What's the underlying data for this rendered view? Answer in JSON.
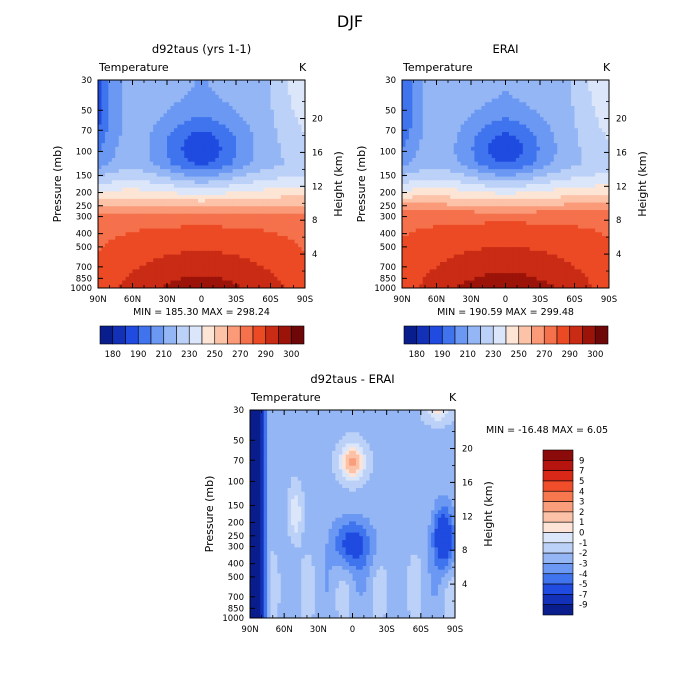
{
  "figure_title": "DJF",
  "chart_data": [
    {
      "type": "heatmap",
      "title": "d92taus (yrs 1-1)",
      "variable_label": "Temperature",
      "units_label": "K",
      "xlabel": "",
      "ylabel": "Pressure (mb)",
      "y2label": "Height (km)",
      "x_ticks": [
        "90N",
        "60N",
        "30N",
        "0",
        "30S",
        "60S",
        "90S"
      ],
      "y_ticks": [
        "30",
        "50",
        "70",
        "100",
        "150",
        "200",
        "250",
        "300",
        "400",
        "500",
        "700",
        "850",
        "1000"
      ],
      "y2_ticks": [
        "20",
        "16",
        "12",
        "8",
        "4"
      ],
      "x_range": [
        90,
        -90
      ],
      "y_range": [
        1000,
        30
      ],
      "min_max_text": "MIN = 185.30   MAX = 298.24",
      "min": 185.3,
      "max": 298.24,
      "colorbar_orientation": "horizontal",
      "colorbar_labels": [
        "180",
        "190",
        "210",
        "230",
        "250",
        "270",
        "290",
        "300"
      ]
    },
    {
      "type": "heatmap",
      "title": "ERAI",
      "variable_label": "Temperature",
      "units_label": "K",
      "xlabel": "",
      "ylabel": "Pressure (mb)",
      "y2label": "Height (km)",
      "x_ticks": [
        "90N",
        "60N",
        "30N",
        "0",
        "30S",
        "60S",
        "90S"
      ],
      "y_ticks": [
        "30",
        "50",
        "70",
        "100",
        "150",
        "200",
        "250",
        "300",
        "400",
        "500",
        "700",
        "850",
        "1000"
      ],
      "y2_ticks": [
        "20",
        "16",
        "12",
        "8",
        "4"
      ],
      "x_range": [
        90,
        -90
      ],
      "y_range": [
        1000,
        30
      ],
      "min_max_text": "MIN = 190.59   MAX = 299.48",
      "min": 190.59,
      "max": 299.48,
      "colorbar_orientation": "horizontal",
      "colorbar_labels": [
        "180",
        "190",
        "210",
        "230",
        "250",
        "270",
        "290",
        "300"
      ]
    },
    {
      "type": "heatmap",
      "title": "d92taus - ERAI",
      "variable_label": "Temperature",
      "units_label": "K",
      "xlabel": "",
      "ylabel": "Pressure (mb)",
      "y2label": "Height (km)",
      "x_ticks": [
        "90N",
        "60N",
        "30N",
        "0",
        "30S",
        "60S",
        "90S"
      ],
      "y_ticks": [
        "30",
        "50",
        "70",
        "100",
        "150",
        "200",
        "250",
        "300",
        "400",
        "500",
        "700",
        "850",
        "1000"
      ],
      "y2_ticks": [
        "20",
        "16",
        "12",
        "8",
        "4"
      ],
      "x_range": [
        90,
        -90
      ],
      "y_range": [
        1000,
        30
      ],
      "min_max_text": "MIN = -16.48   MAX =    6.05",
      "min": -16.48,
      "max": 6.05,
      "colorbar_orientation": "vertical",
      "colorbar_labels": [
        "9",
        "7",
        "5",
        "4",
        "3",
        "2",
        "1",
        "0",
        "-1",
        "-2",
        "-3",
        "-4",
        "-5",
        "-7",
        "-9"
      ]
    }
  ],
  "colors": {
    "abs_scale": [
      "#0a1d8c",
      "#1230b8",
      "#1f4be0",
      "#3f74ee",
      "#6a98f2",
      "#94b6f5",
      "#bcd1f7",
      "#dbe6fa",
      "#fde5d6",
      "#fcc3a9",
      "#fa9a78",
      "#f5714c",
      "#ec4a24",
      "#c92b14",
      "#9c1309",
      "#6e0707"
    ],
    "diff_scale": [
      "#8b0a0a",
      "#b5140f",
      "#d92818",
      "#f04d2b",
      "#f7774f",
      "#fa9d7b",
      "#fcc2a8",
      "#fde4d6",
      "#dbe6fa",
      "#bcd1f7",
      "#94b6f5",
      "#6a98f2",
      "#3f74ee",
      "#1f4be0",
      "#1230b8",
      "#0a1d8c"
    ]
  }
}
